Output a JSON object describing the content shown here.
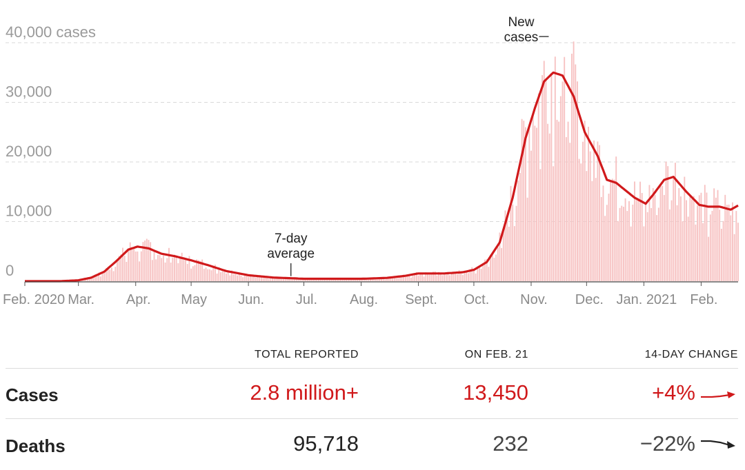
{
  "chart_data": {
    "type": "bar",
    "y_unit_label": "cases",
    "y_ticks": [
      0,
      10000,
      20000,
      30000,
      40000
    ],
    "y_tick_labels": [
      "0",
      "10,000",
      "20,000",
      "30,000",
      "40,000 cases"
    ],
    "ylim": [
      0,
      42000
    ],
    "x_range_days": [
      "2020-02-01",
      "2021-02-21"
    ],
    "x_tick_labels": [
      "Feb. 2020",
      "Mar.",
      "Apr.",
      "May",
      "Jun.",
      "Jul.",
      "Aug.",
      "Sept.",
      "Oct.",
      "Nov.",
      "Dec.",
      "Jan. 2021",
      "Feb."
    ],
    "x_tick_dates": [
      "2020-02-01",
      "2020-03-01",
      "2020-04-01",
      "2020-05-01",
      "2020-06-01",
      "2020-07-01",
      "2020-08-01",
      "2020-09-01",
      "2020-10-01",
      "2020-11-01",
      "2020-12-01",
      "2021-01-01",
      "2021-02-01"
    ],
    "grid": true,
    "series": [
      {
        "name": "New cases",
        "kind": "bars",
        "color": "#f7c2c2",
        "note": "daily new cases follow the 7-day average with day-to-day variation"
      },
      {
        "name": "7-day average",
        "kind": "line",
        "color": "#d0191b",
        "points": [
          [
            "2020-02-01",
            0
          ],
          [
            "2020-02-20",
            0
          ],
          [
            "2020-03-01",
            150
          ],
          [
            "2020-03-08",
            600
          ],
          [
            "2020-03-15",
            1600
          ],
          [
            "2020-03-22",
            3500
          ],
          [
            "2020-03-28",
            5300
          ],
          [
            "2020-04-02",
            5800
          ],
          [
            "2020-04-08",
            5500
          ],
          [
            "2020-04-15",
            4600
          ],
          [
            "2020-04-22",
            4200
          ],
          [
            "2020-05-01",
            3500
          ],
          [
            "2020-05-10",
            2700
          ],
          [
            "2020-05-20",
            1700
          ],
          [
            "2020-06-01",
            1000
          ],
          [
            "2020-06-15",
            600
          ],
          [
            "2020-06-24",
            500
          ],
          [
            "2020-07-01",
            400
          ],
          [
            "2020-07-15",
            400
          ],
          [
            "2020-08-01",
            400
          ],
          [
            "2020-08-15",
            550
          ],
          [
            "2020-08-25",
            900
          ],
          [
            "2020-09-01",
            1300
          ],
          [
            "2020-09-15",
            1300
          ],
          [
            "2020-09-25",
            1500
          ],
          [
            "2020-10-01",
            1900
          ],
          [
            "2020-10-08",
            3200
          ],
          [
            "2020-10-15",
            6500
          ],
          [
            "2020-10-22",
            14000
          ],
          [
            "2020-10-29",
            24000
          ],
          [
            "2020-11-03",
            29000
          ],
          [
            "2020-11-08",
            33500
          ],
          [
            "2020-11-13",
            35000
          ],
          [
            "2020-11-18",
            34500
          ],
          [
            "2020-11-24",
            31000
          ],
          [
            "2020-11-30",
            25000
          ],
          [
            "2020-12-07",
            21000
          ],
          [
            "2020-12-12",
            17000
          ],
          [
            "2020-12-17",
            16500
          ],
          [
            "2020-12-21",
            15500
          ],
          [
            "2020-12-27",
            14000
          ],
          [
            "2021-01-02",
            13000
          ],
          [
            "2021-01-06",
            14500
          ],
          [
            "2021-01-12",
            17000
          ],
          [
            "2021-01-17",
            17500
          ],
          [
            "2021-01-24",
            15000
          ],
          [
            "2021-01-31",
            12800
          ],
          [
            "2021-02-05",
            12500
          ],
          [
            "2021-02-11",
            12500
          ],
          [
            "2021-02-17",
            12000
          ],
          [
            "2021-02-21",
            12700
          ]
        ]
      }
    ],
    "annotations": [
      {
        "text": [
          "New",
          "cases"
        ],
        "target_date": "2020-11-12"
      },
      {
        "text": [
          "7-day",
          "average"
        ],
        "target_date": "2020-06-24"
      }
    ]
  },
  "table": {
    "headers": [
      "TOTAL REPORTED",
      "ON FEB. 21",
      "14-DAY CHANGE"
    ],
    "rows": [
      {
        "label": "Cases",
        "total": "2.8 million+",
        "on_day": "13,450",
        "change": "+4%",
        "color": "#d0191b",
        "trend": "up"
      },
      {
        "label": "Deaths",
        "total": "95,718",
        "on_day": "232",
        "change": "−22%",
        "color": "#222222",
        "trend": "down"
      }
    ]
  },
  "colors": {
    "accent": "#d0191b",
    "bars": "#f7c2c2",
    "grid": "#d8d8d8"
  }
}
